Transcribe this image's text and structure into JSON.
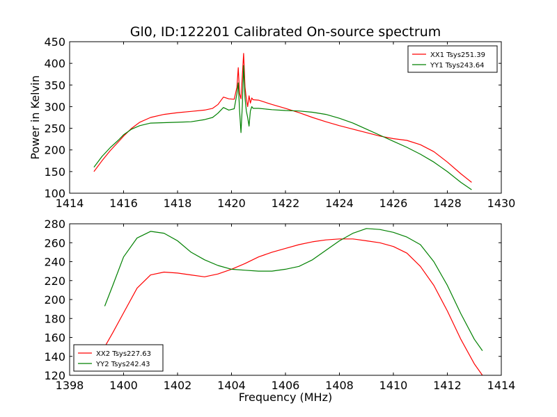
{
  "chart_data": [
    {
      "type": "line",
      "title": "Gl0, ID:122201 Calibrated On-source spectrum",
      "xlabel": "",
      "ylabel": "Power in Kelvin",
      "xlim": [
        1414,
        1430
      ],
      "ylim": [
        100,
        450
      ],
      "xticks": [
        "1414",
        "1416",
        "1418",
        "1420",
        "1422",
        "1424",
        "1426",
        "1428",
        "1430"
      ],
      "yticks": [
        "100",
        "150",
        "200",
        "250",
        "300",
        "350",
        "400",
        "450"
      ],
      "grid": false,
      "legend_position": "top-right",
      "series": [
        {
          "name": "XX1 Tsys251.39",
          "color": "#ff0000",
          "x": [
            1414.9,
            1415.2,
            1415.5,
            1415.8,
            1416.0,
            1416.3,
            1416.6,
            1417.0,
            1417.5,
            1418.0,
            1418.5,
            1419.0,
            1419.3,
            1419.5,
            1419.7,
            1419.9,
            1420.1,
            1420.2,
            1420.25,
            1420.3,
            1420.35,
            1420.4,
            1420.45,
            1420.5,
            1420.55,
            1420.6,
            1420.65,
            1420.7,
            1420.75,
            1420.8,
            1421.0,
            1421.5,
            1422.0,
            1422.5,
            1423.0,
            1423.5,
            1424.0,
            1424.5,
            1425.0,
            1425.5,
            1426.0,
            1426.5,
            1427.0,
            1427.5,
            1428.0,
            1428.5,
            1428.9
          ],
          "y": [
            150,
            175,
            198,
            218,
            232,
            250,
            264,
            275,
            282,
            286,
            289,
            292,
            296,
            305,
            322,
            318,
            317,
            345,
            390,
            330,
            318,
            370,
            423,
            345,
            318,
            300,
            325,
            308,
            320,
            316,
            315,
            305,
            296,
            286,
            275,
            265,
            256,
            248,
            240,
            232,
            226,
            222,
            212,
            196,
            172,
            145,
            125
          ]
        },
        {
          "name": "YY1 Tsys243.64",
          "color": "#008000",
          "x": [
            1414.9,
            1415.2,
            1415.5,
            1415.8,
            1416.0,
            1416.3,
            1416.6,
            1417.0,
            1417.5,
            1418.0,
            1418.5,
            1419.0,
            1419.3,
            1419.5,
            1419.7,
            1419.9,
            1420.1,
            1420.2,
            1420.25,
            1420.3,
            1420.35,
            1420.4,
            1420.45,
            1420.5,
            1420.55,
            1420.6,
            1420.65,
            1420.7,
            1420.75,
            1420.8,
            1421.0,
            1421.5,
            1422.0,
            1422.5,
            1423.0,
            1423.5,
            1424.0,
            1424.5,
            1425.0,
            1425.5,
            1426.0,
            1426.5,
            1427.0,
            1427.5,
            1428.0,
            1428.5,
            1428.9
          ],
          "y": [
            160,
            185,
            205,
            222,
            235,
            248,
            256,
            262,
            263,
            264,
            265,
            270,
            275,
            285,
            298,
            292,
            295,
            330,
            355,
            290,
            240,
            300,
            395,
            320,
            290,
            275,
            255,
            290,
            300,
            296,
            296,
            293,
            291,
            290,
            287,
            282,
            273,
            262,
            248,
            234,
            220,
            206,
            190,
            172,
            150,
            125,
            108
          ]
        }
      ]
    },
    {
      "type": "line",
      "title": "",
      "xlabel": "Frequency (MHz)",
      "ylabel": "",
      "xlim": [
        1398,
        1414
      ],
      "ylim": [
        120,
        280
      ],
      "xticks": [
        "1398",
        "1400",
        "1402",
        "1404",
        "1406",
        "1408",
        "1410",
        "1412",
        "1414"
      ],
      "yticks": [
        "120",
        "140",
        "160",
        "180",
        "200",
        "220",
        "240",
        "260",
        "280"
      ],
      "grid": false,
      "legend_position": "bottom-left",
      "series": [
        {
          "name": "XX2 Tsys227.63",
          "color": "#ff0000",
          "x": [
            1399.3,
            1399.6,
            1400.0,
            1400.5,
            1401.0,
            1401.5,
            1402.0,
            1402.5,
            1403.0,
            1403.5,
            1404.0,
            1404.5,
            1405.0,
            1405.5,
            1406.0,
            1406.5,
            1407.0,
            1407.5,
            1408.0,
            1408.5,
            1409.0,
            1409.5,
            1410.0,
            1410.5,
            1411.0,
            1411.5,
            1412.0,
            1412.5,
            1413.0,
            1413.3
          ],
          "y": [
            150,
            165,
            186,
            212,
            226,
            229,
            228,
            226,
            224,
            227,
            232,
            238,
            245,
            250,
            254,
            258,
            261,
            263,
            264,
            264,
            262,
            260,
            256,
            249,
            235,
            215,
            188,
            158,
            132,
            120
          ]
        },
        {
          "name": "YY2 Tsys242.43",
          "color": "#008000",
          "x": [
            1399.3,
            1399.6,
            1400.0,
            1400.5,
            1401.0,
            1401.5,
            1402.0,
            1402.5,
            1403.0,
            1403.5,
            1404.0,
            1404.5,
            1405.0,
            1405.5,
            1406.0,
            1406.5,
            1407.0,
            1407.5,
            1408.0,
            1408.5,
            1409.0,
            1409.5,
            1410.0,
            1410.5,
            1411.0,
            1411.5,
            1412.0,
            1412.5,
            1413.0,
            1413.3
          ],
          "y": [
            193,
            215,
            245,
            265,
            272,
            270,
            262,
            250,
            242,
            236,
            232,
            231,
            230,
            230,
            232,
            235,
            242,
            252,
            262,
            270,
            275,
            274,
            271,
            266,
            258,
            240,
            215,
            185,
            158,
            146
          ]
        }
      ]
    }
  ]
}
